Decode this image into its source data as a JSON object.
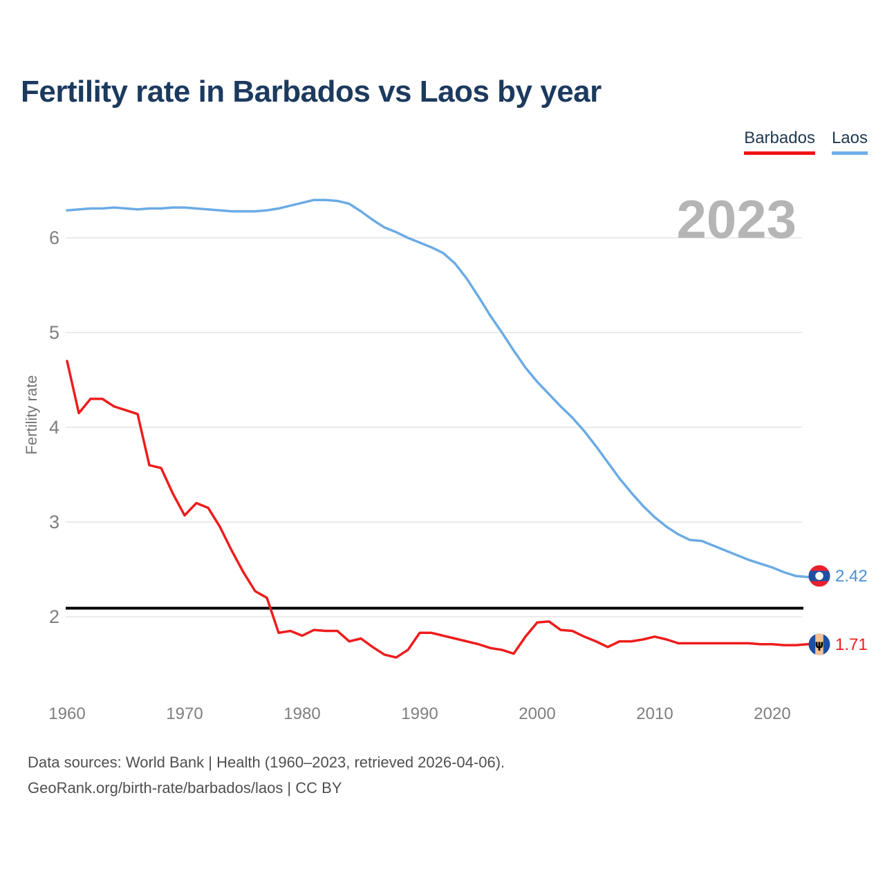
{
  "header": {
    "title": "Fertility rate in Barbados vs Laos by year"
  },
  "legend": {
    "items": [
      {
        "label": "Barbados",
        "color": "#f01414"
      },
      {
        "label": "Laos",
        "color": "#6fb0e8"
      }
    ]
  },
  "watermark": {
    "year": "2023",
    "color": "#b5b5b5"
  },
  "axes": {
    "ylabel": "Fertility rate"
  },
  "end_labels": {
    "laos": "2.42",
    "barbados": "1.71"
  },
  "footer": {
    "line1": "Data sources: World Bank | Health (1960–2023, retrieved 2026-04-06).",
    "line2": "GeoRank.org/birth-rate/barbados/laos | CC BY"
  },
  "chart_data": {
    "type": "line",
    "title": "Fertility rate in Barbados vs Laos by year",
    "xlabel": "",
    "ylabel": "Fertility rate",
    "x_start": 1960,
    "x_step": 1,
    "x_end": 2023,
    "xticks": [
      1960,
      1970,
      1980,
      1990,
      2000,
      2010,
      2020
    ],
    "yticks": [
      2,
      3,
      4,
      5,
      6
    ],
    "ylim": [
      1.45,
      6.6
    ],
    "grid": "horizontal",
    "gridline_color": "#ebebeb",
    "tick_color": "#7e7e7e",
    "reference_line": {
      "value": 2.09,
      "color": "#000000"
    },
    "series": [
      {
        "name": "Laos",
        "color": "#6babe4",
        "end_label": "2.42",
        "values": [
          6.29,
          6.3,
          6.31,
          6.31,
          6.32,
          6.31,
          6.3,
          6.31,
          6.31,
          6.32,
          6.32,
          6.31,
          6.3,
          6.29,
          6.28,
          6.28,
          6.28,
          6.29,
          6.31,
          6.34,
          6.37,
          6.4,
          6.4,
          6.39,
          6.36,
          6.28,
          6.19,
          6.11,
          6.06,
          6.0,
          5.95,
          5.9,
          5.84,
          5.73,
          5.57,
          5.38,
          5.18,
          5.0,
          4.81,
          4.63,
          4.48,
          4.35,
          4.22,
          4.1,
          3.96,
          3.8,
          3.63,
          3.46,
          3.31,
          3.17,
          3.05,
          2.95,
          2.87,
          2.81,
          2.8,
          2.75,
          2.7,
          2.65,
          2.6,
          2.56,
          2.52,
          2.47,
          2.43,
          2.42
        ]
      },
      {
        "name": "Barbados",
        "color": "#ee1c1c",
        "end_label": "1.71",
        "values": [
          4.7,
          4.15,
          4.3,
          4.3,
          4.22,
          4.18,
          4.14,
          3.6,
          3.57,
          3.3,
          3.07,
          3.2,
          3.15,
          2.95,
          2.7,
          2.47,
          2.27,
          2.2,
          1.83,
          1.85,
          1.8,
          1.86,
          1.85,
          1.85,
          1.74,
          1.77,
          1.68,
          1.6,
          1.57,
          1.65,
          1.83,
          1.83,
          1.8,
          1.77,
          1.74,
          1.71,
          1.67,
          1.65,
          1.61,
          1.79,
          1.94,
          1.95,
          1.86,
          1.85,
          1.79,
          1.74,
          1.68,
          1.74,
          1.74,
          1.76,
          1.79,
          1.76,
          1.72,
          1.72,
          1.72,
          1.72,
          1.72,
          1.72,
          1.72,
          1.71,
          1.71,
          1.7,
          1.7,
          1.71
        ]
      }
    ]
  }
}
